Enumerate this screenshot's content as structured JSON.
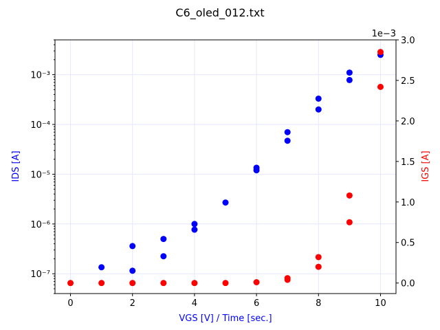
{
  "chart_data": {
    "type": "scatter",
    "title": "C6_oled_012.txt",
    "xlabel": "VGS [V] / Time [sec.]",
    "ylabel_left": "IDS [A]",
    "ylabel_right": "IGS [A]",
    "xlim": [
      -0.5,
      10.5
    ],
    "ylim_left": [
      4e-08,
      0.005
    ],
    "yscale_left": "log",
    "ylim_right": [
      -0.00013,
      0.003
    ],
    "yscale_right": "linear",
    "right_offset_label": "1e−3",
    "grid": true,
    "colors": {
      "IDS": "#0000ff",
      "IGS": "#ff0000",
      "grid": "#e6e6ff",
      "xlabel": "#0000ff"
    },
    "x_ticks": [
      {
        "v": 0,
        "label": "0"
      },
      {
        "v": 2,
        "label": "2"
      },
      {
        "v": 4,
        "label": "4"
      },
      {
        "v": 6,
        "label": "6"
      },
      {
        "v": 8,
        "label": "8"
      },
      {
        "v": 10,
        "label": "10"
      }
    ],
    "y_left_ticks": [
      {
        "v": 1e-07,
        "label": "10⁻⁷"
      },
      {
        "v": 1e-06,
        "label": "10⁻⁶"
      },
      {
        "v": 1e-05,
        "label": "10⁻⁵"
      },
      {
        "v": 0.0001,
        "label": "10⁻⁴"
      },
      {
        "v": 0.001,
        "label": "10⁻³"
      }
    ],
    "y_right_ticks": [
      {
        "v": 0.0,
        "label": "0.0"
      },
      {
        "v": 0.0005,
        "label": "0.5"
      },
      {
        "v": 0.001,
        "label": "1.0"
      },
      {
        "v": 0.0015,
        "label": "1.5"
      },
      {
        "v": 0.002,
        "label": "2.0"
      },
      {
        "v": 0.0025,
        "label": "2.5"
      },
      {
        "v": 0.003,
        "label": "3.0"
      }
    ],
    "series": [
      {
        "name": "IDS",
        "axis": "left",
        "color": "#0000ff",
        "points": [
          [
            1,
            1.35e-07
          ],
          [
            2,
            3.6e-07
          ],
          [
            2,
            1.15e-07
          ],
          [
            3,
            5e-07
          ],
          [
            3,
            2.25e-07
          ],
          [
            4,
            1e-06
          ],
          [
            4,
            7.7e-07
          ],
          [
            5,
            2.7e-06
          ],
          [
            6,
            1.35e-05
          ],
          [
            6,
            1.2e-05
          ],
          [
            7,
            7e-05
          ],
          [
            7,
            4.7e-05
          ],
          [
            8,
            0.00033
          ],
          [
            8,
            0.0002
          ],
          [
            9,
            0.0011
          ],
          [
            9,
            0.00078
          ],
          [
            10,
            0.0025
          ]
        ]
      },
      {
        "name": "IGS",
        "axis": "right",
        "color": "#ff0000",
        "points": [
          [
            0,
            0.0
          ],
          [
            1,
            0.0
          ],
          [
            2,
            0.0
          ],
          [
            3,
            0.0
          ],
          [
            4,
            0.0
          ],
          [
            5,
            0.0
          ],
          [
            6,
            1e-05
          ],
          [
            7,
            6e-05
          ],
          [
            7,
            4e-05
          ],
          [
            8,
            0.00032
          ],
          [
            8,
            0.0002
          ],
          [
            9,
            0.00108
          ],
          [
            9,
            0.00075
          ],
          [
            10,
            0.00285
          ],
          [
            10,
            0.00242
          ]
        ]
      }
    ]
  }
}
